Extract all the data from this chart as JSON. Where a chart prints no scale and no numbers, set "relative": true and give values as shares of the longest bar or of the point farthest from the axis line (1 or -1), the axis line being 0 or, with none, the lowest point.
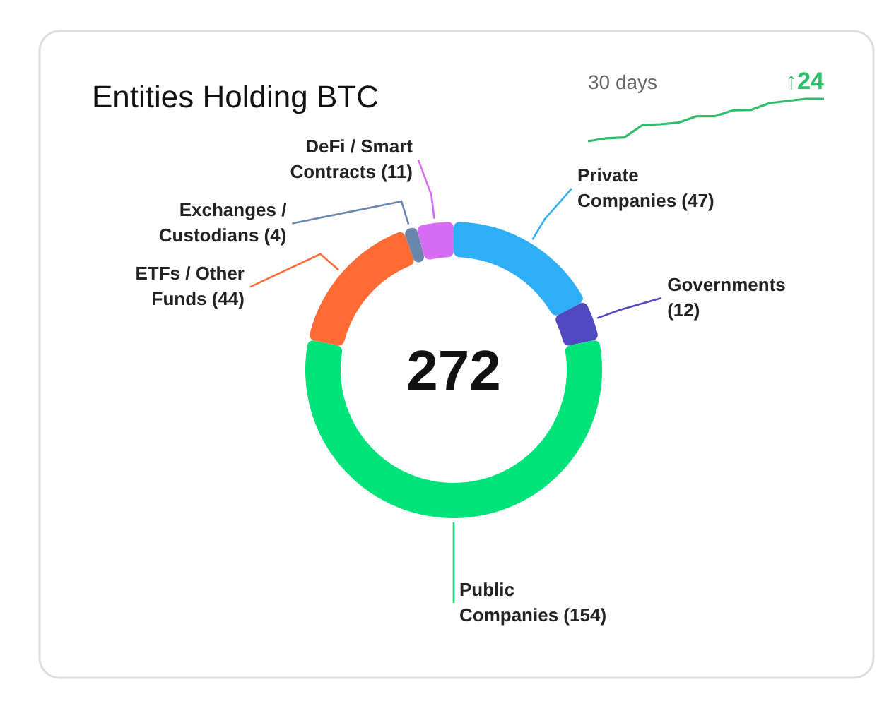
{
  "chart_data": [
    {
      "type": "donut",
      "title": "Entities Holding BTC",
      "categories": [
        "Private Companies",
        "Governments",
        "Public Companies",
        "ETFs / Other Funds",
        "Exchanges / Custodians",
        "DeFi / Smart Contracts"
      ],
      "values": [
        47,
        12,
        154,
        44,
        4,
        11
      ],
      "value_labels": [
        "(47)",
        "(12)",
        "(154)",
        "(44)",
        "(4)",
        "(11)"
      ],
      "colors": [
        "#2eaef7",
        "#5048c0",
        "#00e27a",
        "#ff6a35",
        "#6b86ad",
        "#d66cf2"
      ],
      "annotations": [
        "272"
      ]
    },
    {
      "type": "line",
      "title": "30 days",
      "relative": true,
      "categories": [
        null,
        null,
        null,
        null,
        null,
        null,
        null,
        null,
        null,
        null,
        null,
        null,
        null,
        null
      ],
      "series": [
        {
          "color": "#2ebd6b",
          "values": [
            0,
            0.07,
            0.09,
            0.38,
            0.4,
            0.44,
            0.59,
            0.59,
            0.73,
            0.74,
            0.9,
            0.95,
            1,
            1
          ]
        }
      ],
      "annotations": [
        "↑24"
      ]
    }
  ]
}
